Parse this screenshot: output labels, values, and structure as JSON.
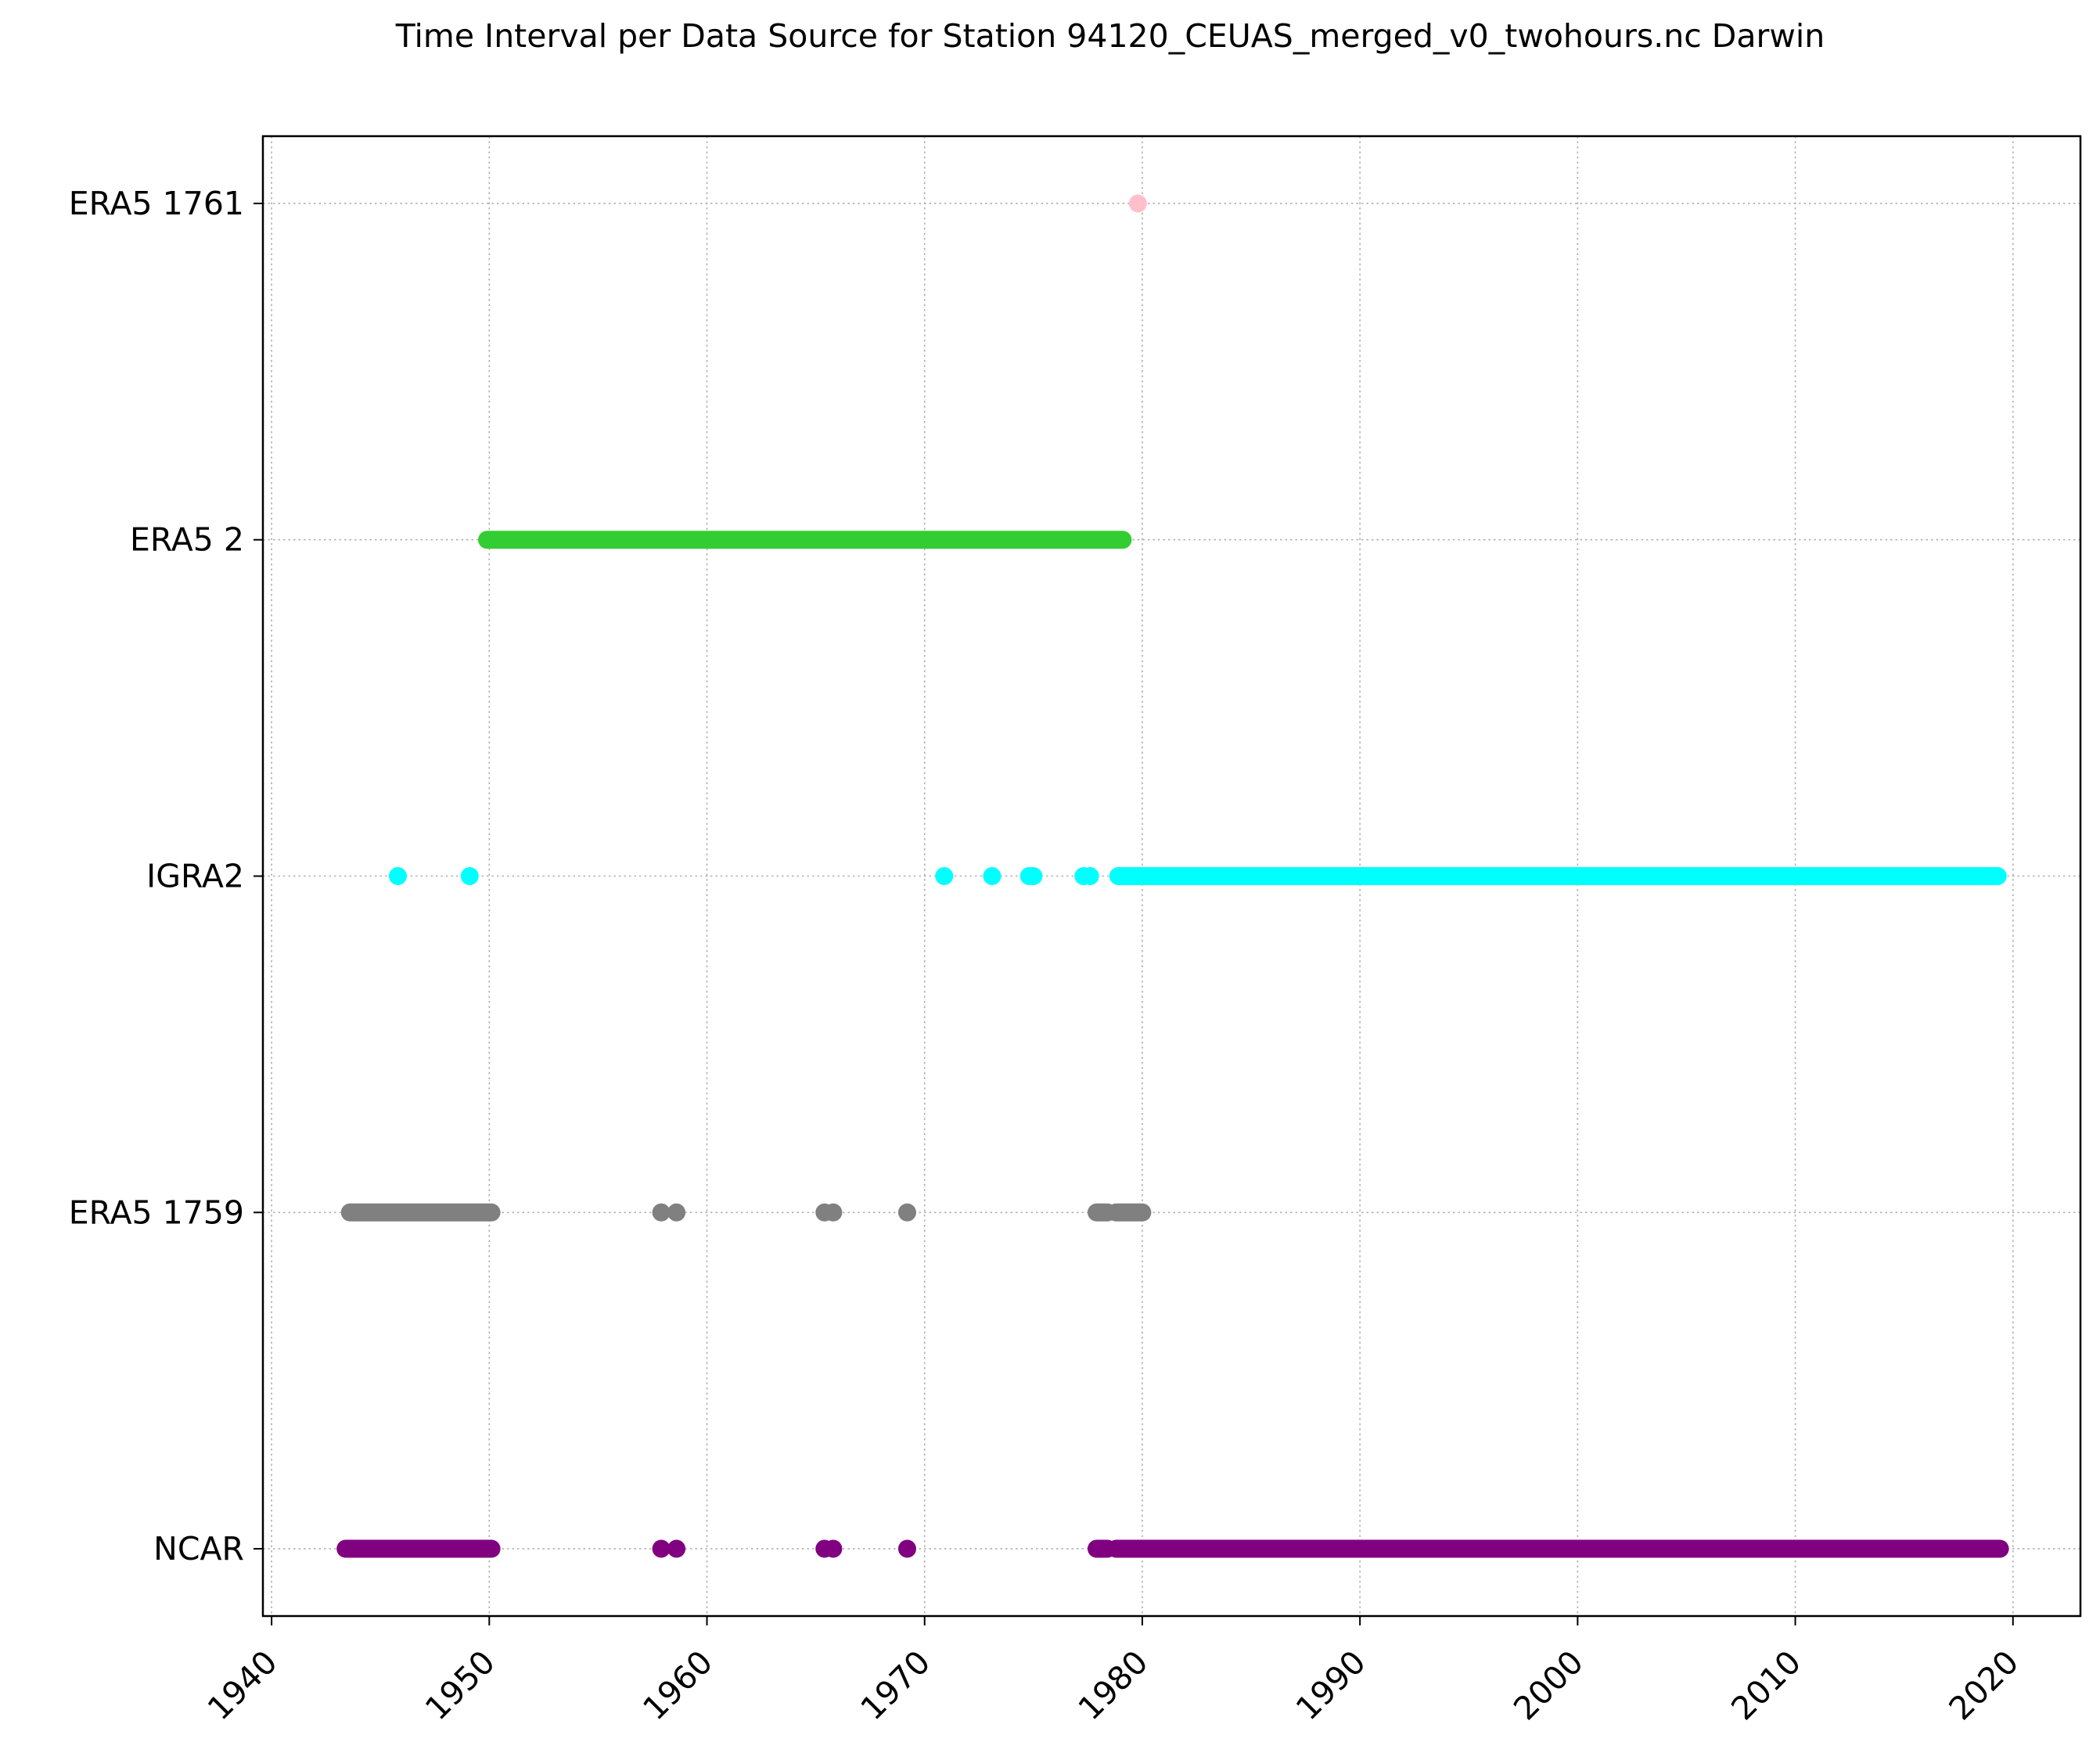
{
  "chart_data": {
    "type": "scatter",
    "title": "Time Interval per Data Source for Station 94120_CEUAS_merged_v0_twohours.nc Darwin",
    "xlabel": "",
    "ylabel": "",
    "xlim": [
      1939.6,
      2023.1
    ],
    "ylim": [
      -0.2,
      4.2
    ],
    "x_ticks": [
      "1940",
      "1950",
      "1960",
      "1970",
      "1980",
      "1990",
      "2000",
      "2010",
      "2020"
    ],
    "grid": true,
    "categories": [
      "NCAR",
      "ERA5 1759",
      "IGRA2",
      "ERA5 2",
      "ERA5 1761"
    ],
    "series": [
      {
        "category": "ERA5 1761",
        "color": "#ffc0cb",
        "points": [
          1979.8
        ],
        "runs": []
      },
      {
        "category": "ERA5 2",
        "color": "#32cd32",
        "points": [],
        "runs": [
          [
            1949.9,
            1979.1
          ]
        ]
      },
      {
        "category": "IGRA2",
        "color": "#00ffff",
        "points": [
          1945.8,
          1949.1,
          1970.9,
          1973.1,
          1974.8,
          1975.0,
          1977.3,
          1977.6
        ],
        "runs": [
          [
            1978.9,
            2019.3
          ]
        ]
      },
      {
        "category": "ERA5 1759",
        "color": "#808080",
        "points": [
          1957.9,
          1958.6,
          1965.4,
          1965.8,
          1969.2
        ],
        "runs": [
          [
            1943.6,
            1950.1
          ],
          [
            1977.9,
            1978.4
          ],
          [
            1978.8,
            1980.0
          ]
        ]
      },
      {
        "category": "NCAR",
        "color": "#800080",
        "points": [
          1957.9,
          1958.6,
          1965.4,
          1965.8,
          1969.2
        ],
        "runs": [
          [
            1943.4,
            1950.1
          ],
          [
            1977.9,
            1978.4
          ],
          [
            1978.8,
            2019.4
          ]
        ]
      }
    ]
  }
}
